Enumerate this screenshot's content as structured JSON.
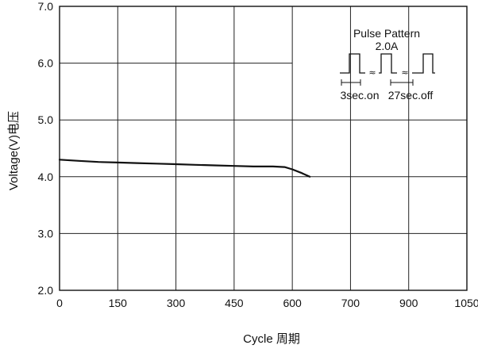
{
  "chart_data": {
    "type": "line",
    "title": "",
    "xlabel": "Cycle 周期",
    "ylabel": "Voltage(V)电压",
    "x_ticks": [
      "0",
      "150",
      "300",
      "450",
      "600",
      "700",
      "900",
      "1050"
    ],
    "y_ticks": [
      "2.0",
      "3.0",
      "4.0",
      "5.0",
      "6.0",
      "7.0"
    ],
    "ylim": [
      2.0,
      7.0
    ],
    "grid": true,
    "x_axis_note": "non-uniform: 0-600 in steps of 150, then 700, 900, 1050",
    "series": [
      {
        "x": [
          0,
          50,
          100,
          150,
          200,
          250,
          300,
          350,
          400,
          450,
          500,
          550,
          580,
          600,
          615,
          630
        ],
        "values": [
          4.3,
          4.28,
          4.26,
          4.25,
          4.24,
          4.23,
          4.22,
          4.21,
          4.2,
          4.19,
          4.18,
          4.18,
          4.17,
          4.13,
          4.07,
          4.0
        ]
      }
    ],
    "inset": {
      "title": "Pulse Pattern",
      "current": "2.0A",
      "on_label": "3sec.on",
      "off_label": "27sec.off"
    }
  }
}
